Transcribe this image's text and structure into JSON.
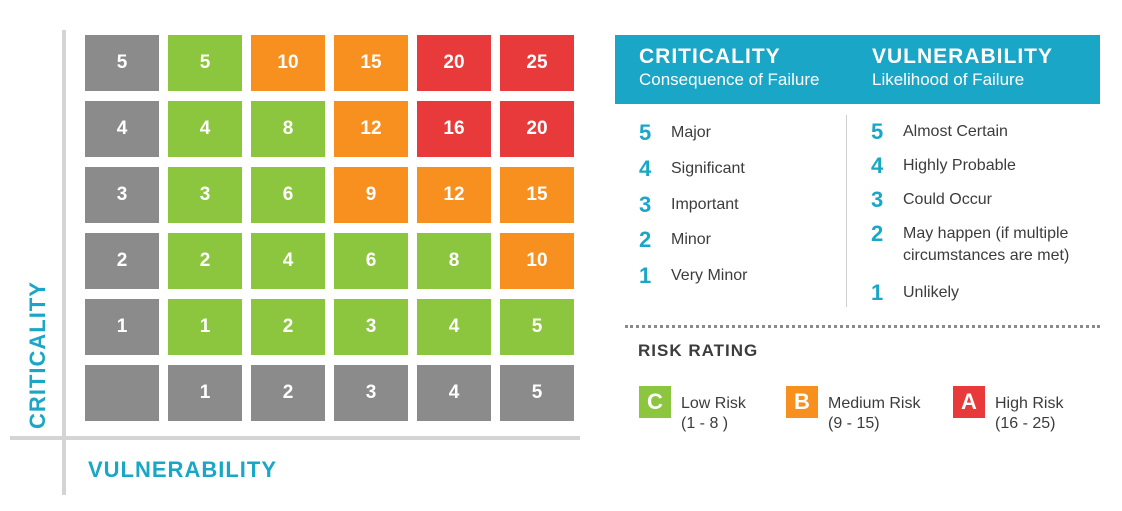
{
  "axes": {
    "y_label": "CRITICALITY",
    "x_label": "VULNERABILITY"
  },
  "matrix": {
    "rows": [
      {
        "row_label": "5",
        "cells": [
          {
            "value": "5",
            "rating": "C"
          },
          {
            "value": "10",
            "rating": "B"
          },
          {
            "value": "15",
            "rating": "B"
          },
          {
            "value": "20",
            "rating": "A"
          },
          {
            "value": "25",
            "rating": "A"
          }
        ]
      },
      {
        "row_label": "4",
        "cells": [
          {
            "value": "4",
            "rating": "C"
          },
          {
            "value": "8",
            "rating": "C"
          },
          {
            "value": "12",
            "rating": "B"
          },
          {
            "value": "16",
            "rating": "A"
          },
          {
            "value": "20",
            "rating": "A"
          }
        ]
      },
      {
        "row_label": "3",
        "cells": [
          {
            "value": "3",
            "rating": "C"
          },
          {
            "value": "6",
            "rating": "C"
          },
          {
            "value": "9",
            "rating": "B"
          },
          {
            "value": "12",
            "rating": "B"
          },
          {
            "value": "15",
            "rating": "B"
          }
        ]
      },
      {
        "row_label": "2",
        "cells": [
          {
            "value": "2",
            "rating": "C"
          },
          {
            "value": "4",
            "rating": "C"
          },
          {
            "value": "6",
            "rating": "C"
          },
          {
            "value": "8",
            "rating": "C"
          },
          {
            "value": "10",
            "rating": "B"
          }
        ]
      },
      {
        "row_label": "1",
        "cells": [
          {
            "value": "1",
            "rating": "C"
          },
          {
            "value": "2",
            "rating": "C"
          },
          {
            "value": "3",
            "rating": "C"
          },
          {
            "value": "4",
            "rating": "C"
          },
          {
            "value": "5",
            "rating": "C"
          }
        ]
      }
    ],
    "column_labels": [
      "1",
      "2",
      "3",
      "4",
      "5"
    ]
  },
  "colors": {
    "gray": "#8b8b8b",
    "C": "#8cc63f",
    "B": "#f7901e",
    "A": "#e83a3a",
    "accent": "#1aa6c6"
  },
  "header": {
    "criticality_title": "CRITICALITY",
    "criticality_sub": "Consequence of Failure",
    "vulnerability_title": "VULNERABILITY",
    "vulnerability_sub": "Likelihood of Failure"
  },
  "criticality_scale": [
    {
      "num": "5",
      "label": "Major"
    },
    {
      "num": "4",
      "label": "Significant"
    },
    {
      "num": "3",
      "label": "Important"
    },
    {
      "num": "2",
      "label": "Minor"
    },
    {
      "num": "1",
      "label": "Very Minor"
    }
  ],
  "vulnerability_scale": [
    {
      "num": "5",
      "label": "Almost Certain"
    },
    {
      "num": "4",
      "label": "Highly Probable"
    },
    {
      "num": "3",
      "label": "Could Occur"
    },
    {
      "num": "2",
      "label": "May happen (if multiple",
      "label2": "circumstances are met)"
    },
    {
      "num": "1",
      "label": "Unlikely"
    }
  ],
  "risk_rating": {
    "title": "RISK RATING",
    "items": [
      {
        "letter": "C",
        "name": "Low Risk",
        "range": "(1 - 8 )",
        "color": "#8cc63f"
      },
      {
        "letter": "B",
        "name": "Medium Risk",
        "range": "(9 - 15)",
        "color": "#f7901e"
      },
      {
        "letter": "A",
        "name": "High Risk",
        "range": "(16 - 25)",
        "color": "#e83a3a"
      }
    ]
  }
}
